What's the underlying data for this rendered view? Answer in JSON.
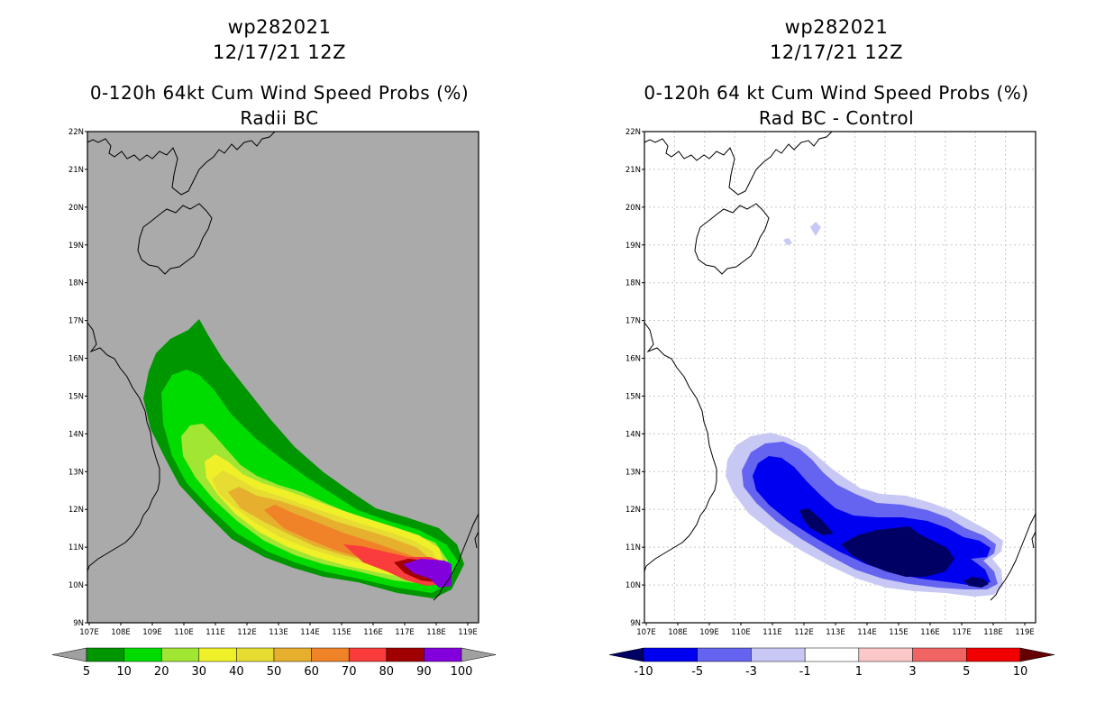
{
  "left": {
    "title": "wp282021",
    "date": "12/17/21 12Z",
    "heading": "0-120h 64kt Cum Wind Speed Probs (%)",
    "subheading": "Radii BC",
    "colorbar": {
      "colors": [
        "#009600",
        "#00dc00",
        "#a0e632",
        "#f0f028",
        "#e6dc32",
        "#e6af2d",
        "#f08228",
        "#fa3c3c",
        "#a00000",
        "#8200dc"
      ],
      "ticks": [
        "5",
        "10",
        "20",
        "30",
        "40",
        "50",
        "60",
        "70",
        "80",
        "90",
        "100"
      ],
      "over": "#a0a0a0",
      "under": "#a0a0a0"
    }
  },
  "right": {
    "title": "wp282021",
    "date": "12/17/21 12Z",
    "heading": "0-120h 64 kt Cum Wind Speed Probs (%)",
    "subheading": "Rad BC - Control",
    "colorbar": {
      "colors": [
        "#0000f0",
        "#6464f0",
        "#c8c8f5",
        "#ffffff",
        "#fac8c8",
        "#f06464",
        "#f00000"
      ],
      "ticks": [
        "-10",
        "-5",
        "-3",
        "-1",
        "1",
        "3",
        "5",
        "10"
      ],
      "under": "#000064",
      "over": "#640000"
    }
  },
  "axes": {
    "lon_labels": [
      "107E",
      "108E",
      "109E",
      "110E",
      "111E",
      "112E",
      "113E",
      "114E",
      "115E",
      "116E",
      "117E",
      "118E",
      "119E"
    ],
    "lat_labels": [
      "9N",
      "10N",
      "11N",
      "12N",
      "13N",
      "14N",
      "15N",
      "16N",
      "17N",
      "18N",
      "19N",
      "20N",
      "21N",
      "22N"
    ]
  },
  "colors": {
    "land_left": "#aaaaaa",
    "grid_right": "#c8c8c8",
    "coast": "#000000"
  }
}
